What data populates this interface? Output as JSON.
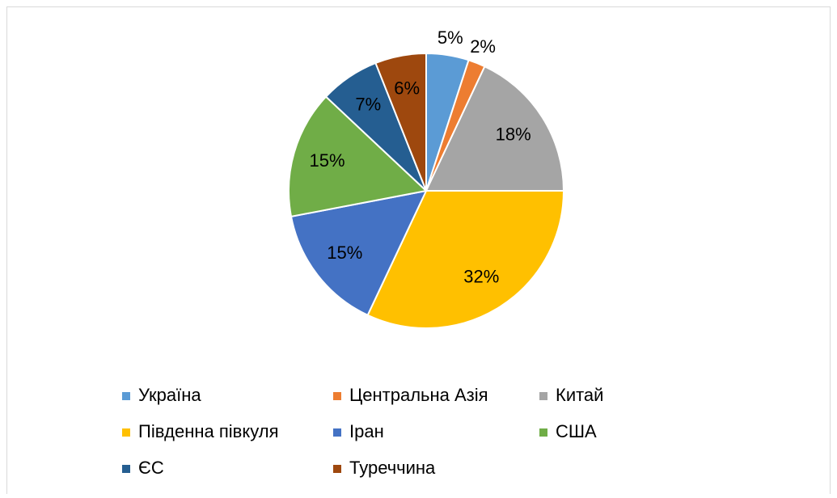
{
  "chart_data": {
    "type": "pie",
    "categories": [
      "Україна",
      "Центральна Азія",
      "Китай",
      "Південна півкуля",
      "Іран",
      "США",
      "ЄС",
      "Туреччина"
    ],
    "values": [
      5,
      2,
      18,
      32,
      15,
      15,
      7,
      6
    ],
    "value_labels": [
      "5%",
      "2%",
      "18%",
      "32%",
      "15%",
      "15%",
      "7%",
      "6%"
    ],
    "colors": [
      "#5b9bd5",
      "#ed7d31",
      "#a5a5a5",
      "#ffc000",
      "#4472c4",
      "#70ad47",
      "#255e91",
      "#9e480e"
    ],
    "legend": "bottom"
  }
}
